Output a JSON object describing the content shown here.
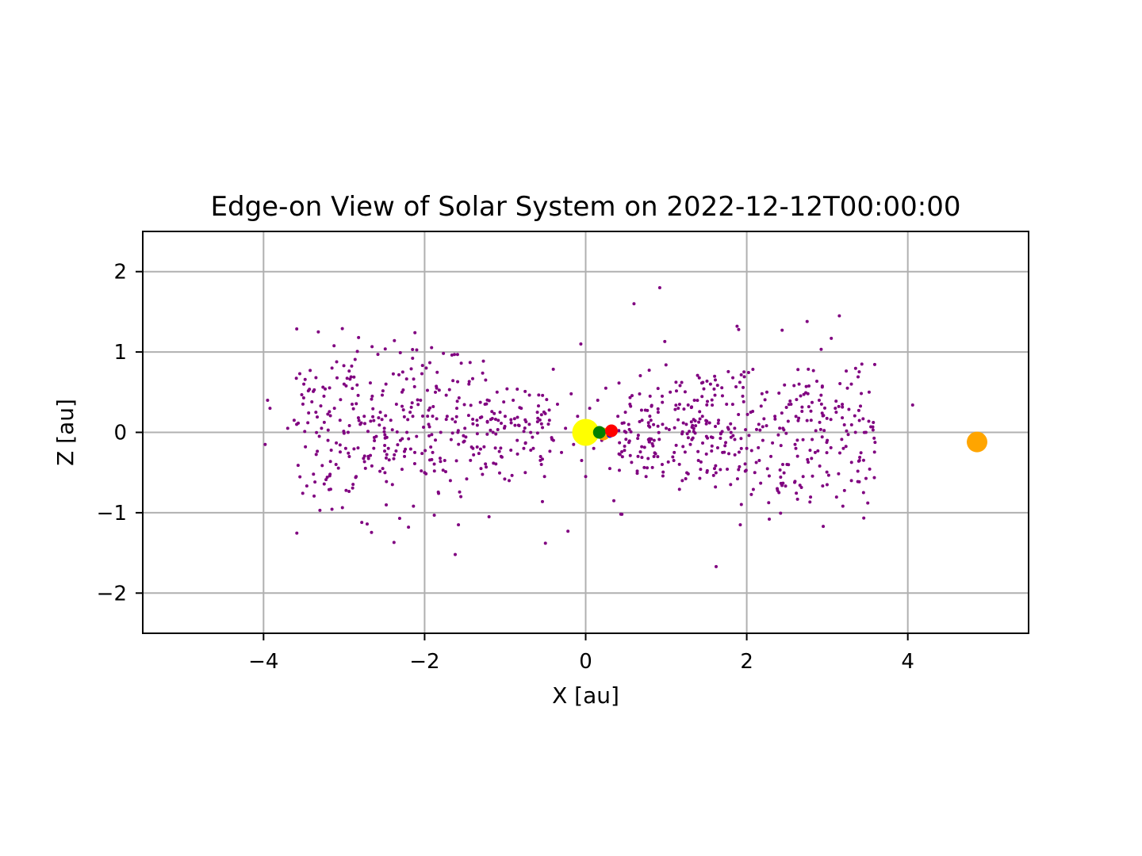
{
  "chart_data": {
    "type": "scatter",
    "title": "Edge-on View of Solar System on 2022-12-12T00:00:00",
    "xlabel": "X [au]",
    "ylabel": "Z [au]",
    "xlim": [
      -5.5,
      5.5
    ],
    "ylim": [
      -2.5,
      2.5
    ],
    "grid": true,
    "x_ticks": [
      -4,
      -2,
      0,
      2,
      4
    ],
    "y_ticks": [
      -2,
      -1,
      0,
      1,
      2
    ],
    "x_tick_labels": [
      "−4",
      "−2",
      "0",
      "2",
      "4"
    ],
    "y_tick_labels": [
      "−2",
      "−1",
      "0",
      "1",
      "2"
    ],
    "colors": {
      "asteroids": "#800080",
      "sun": "#ffff00",
      "venus": "#ffa500",
      "mercury": "#0000ff",
      "earth": "#008000",
      "mars": "#ff0000",
      "jupiter": "#ffa500",
      "grid": "#b0b0b0"
    },
    "bodies": [
      {
        "x": 0.0,
        "z": 0.0,
        "color": "#ffff00",
        "size": "large"
      },
      {
        "x": 0.22,
        "z": -0.02,
        "color": "#ffa500",
        "size": "small"
      },
      {
        "x": 0.3,
        "z": -0.03,
        "color": "#0000ff",
        "size": "tiny"
      },
      {
        "x": 0.17,
        "z": 0.0,
        "color": "#008000",
        "size": "small"
      },
      {
        "x": 0.32,
        "z": 0.02,
        "color": "#ff0000",
        "size": "small"
      },
      {
        "x": 4.86,
        "z": -0.12,
        "color": "#ffa500",
        "size": "medium"
      }
    ],
    "asteroids": [
      [
        -3.98,
        -0.15
      ],
      [
        -3.95,
        0.4
      ],
      [
        -3.92,
        0.3
      ],
      [
        -3.7,
        0.05
      ],
      [
        -3.62,
        0.15
      ],
      [
        -3.55,
        0.73
      ],
      [
        -3.5,
        0.6
      ],
      [
        -3.48,
        -0.18
      ],
      [
        -3.45,
        0.12
      ],
      [
        -3.4,
        0.38
      ],
      [
        -3.38,
        -0.52
      ],
      [
        -3.35,
        0.25
      ],
      [
        -3.32,
        1.25
      ],
      [
        -3.3,
        -0.97
      ],
      [
        -3.28,
        0.05
      ],
      [
        -3.25,
        0.45
      ],
      [
        -3.2,
        -0.1
      ],
      [
        -3.15,
        0.8
      ],
      [
        -3.12,
        0.3
      ],
      [
        -3.1,
        -0.4
      ],
      [
        -3.05,
        0.15
      ],
      [
        -3.0,
        0.6
      ],
      [
        -2.98,
        -0.2
      ],
      [
        -2.95,
        0.0
      ],
      [
        -2.9,
        0.35
      ],
      [
        -2.85,
        -0.55
      ],
      [
        -2.82,
        1.18
      ],
      [
        -2.8,
        0.1
      ],
      [
        -2.78,
        -1.12
      ],
      [
        -2.75,
        0.2
      ],
      [
        -2.7,
        -0.3
      ],
      [
        -2.65,
        0.45
      ],
      [
        -2.6,
        -0.05
      ],
      [
        -2.58,
        0.97
      ],
      [
        -2.55,
        0.25
      ],
      [
        -2.52,
        -0.45
      ],
      [
        -2.5,
        0.05
      ],
      [
        -2.48,
        0.6
      ],
      [
        -2.45,
        -0.2
      ],
      [
        -2.42,
        0.15
      ],
      [
        -2.4,
        -0.65
      ],
      [
        -2.38,
        -1.37
      ],
      [
        -2.35,
        0.35
      ],
      [
        -2.3,
        -0.1
      ],
      [
        -2.28,
        0.5
      ],
      [
        -2.25,
        -0.3
      ],
      [
        -2.22,
        0.0
      ],
      [
        -2.2,
        -1.18
      ],
      [
        -2.18,
        0.25
      ],
      [
        -2.15,
        1.03
      ],
      [
        -2.12,
        1.24
      ],
      [
        -2.1,
        -0.05
      ],
      [
        -2.05,
        0.4
      ],
      [
        -2.0,
        -0.5
      ],
      [
        -1.98,
        0.8
      ],
      [
        -1.95,
        0.1
      ],
      [
        -1.9,
        -0.25
      ],
      [
        -1.88,
        -1.03
      ],
      [
        -1.85,
        0.55
      ],
      [
        -1.8,
        0.0
      ],
      [
        -1.75,
        -0.35
      ],
      [
        -1.72,
        0.2
      ],
      [
        -1.68,
        -0.6
      ],
      [
        -1.62,
        -1.52
      ],
      [
        -1.6,
        0.3
      ],
      [
        -1.58,
        -1.15
      ],
      [
        -1.55,
        -0.8
      ],
      [
        -1.5,
        0.05
      ],
      [
        -1.45,
        0.6
      ],
      [
        -1.4,
        -0.2
      ],
      [
        -1.35,
        0.15
      ],
      [
        -1.3,
        -0.45
      ],
      [
        -1.25,
        0.35
      ],
      [
        -1.2,
        -1.05
      ],
      [
        -1.15,
        0.0
      ],
      [
        -1.1,
        0.5
      ],
      [
        -1.05,
        -0.3
      ],
      [
        -1.0,
        0.2
      ],
      [
        -0.95,
        -0.6
      ],
      [
        -0.9,
        0.4
      ],
      [
        -0.85,
        -0.1
      ],
      [
        -0.8,
        0.3
      ],
      [
        -0.75,
        -0.5
      ],
      [
        -0.7,
        0.1
      ],
      [
        -0.65,
        -0.2
      ],
      [
        -0.6,
        0.25
      ],
      [
        -0.55,
        -0.4
      ],
      [
        -0.5,
        -1.38
      ],
      [
        -0.45,
        0.15
      ],
      [
        -0.4,
        -0.1
      ],
      [
        -0.35,
        0.35
      ],
      [
        -0.3,
        -0.25
      ],
      [
        -0.25,
        0.05
      ],
      [
        -0.22,
        -1.23
      ],
      [
        -0.18,
        0.48
      ],
      [
        -0.15,
        -0.15
      ],
      [
        -0.1,
        0.2
      ],
      [
        -0.06,
        1.1
      ],
      [
        -0.05,
        -0.35
      ],
      [
        0.0,
        -0.55
      ],
      [
        0.05,
        0.3
      ],
      [
        0.1,
        -0.2
      ],
      [
        0.15,
        0.4
      ],
      [
        0.2,
        -0.1
      ],
      [
        0.25,
        0.55
      ],
      [
        0.3,
        -0.45
      ],
      [
        0.35,
        -0.85
      ],
      [
        0.4,
        0.2
      ],
      [
        0.45,
        -1.02
      ],
      [
        0.5,
        0.0
      ],
      [
        0.55,
        0.35
      ],
      [
        0.6,
        1.6
      ],
      [
        0.65,
        -0.3
      ],
      [
        0.7,
        0.15
      ],
      [
        0.75,
        -0.55
      ],
      [
        0.8,
        0.45
      ],
      [
        0.85,
        -0.1
      ],
      [
        0.9,
        0.25
      ],
      [
        0.92,
        1.8
      ],
      [
        0.95,
        -0.4
      ],
      [
        1.0,
        0.05
      ],
      [
        1.05,
        0.5
      ],
      [
        1.1,
        -0.25
      ],
      [
        1.15,
        0.3
      ],
      [
        1.2,
        -0.6
      ],
      [
        1.25,
        0.1
      ],
      [
        1.3,
        -0.15
      ],
      [
        1.35,
        0.4
      ],
      [
        1.4,
        -0.35
      ],
      [
        1.45,
        0.2
      ],
      [
        1.5,
        -0.05
      ],
      [
        1.55,
        0.6
      ],
      [
        1.6,
        -0.45
      ],
      [
        1.62,
        -1.67
      ],
      [
        1.65,
        0.15
      ],
      [
        1.7,
        -0.25
      ],
      [
        1.75,
        0.35
      ],
      [
        1.8,
        -0.65
      ],
      [
        1.85,
        0.05
      ],
      [
        1.88,
        1.32
      ],
      [
        1.9,
        1.28
      ],
      [
        1.92,
        -1.15
      ],
      [
        1.95,
        0.45
      ],
      [
        2.0,
        -0.2
      ],
      [
        2.05,
        0.25
      ],
      [
        2.1,
        -0.5
      ],
      [
        2.15,
        0.1
      ],
      [
        2.2,
        -0.1
      ],
      [
        2.25,
        0.5
      ],
      [
        2.28,
        -1.08
      ],
      [
        2.3,
        -0.3
      ],
      [
        2.35,
        0.2
      ],
      [
        2.4,
        -0.75
      ],
      [
        2.45,
        0.05
      ],
      [
        2.5,
        -0.4
      ],
      [
        2.55,
        0.35
      ],
      [
        2.6,
        -0.15
      ],
      [
        2.65,
        0.6
      ],
      [
        2.7,
        -0.55
      ],
      [
        2.75,
        1.38
      ],
      [
        2.8,
        0.15
      ],
      [
        2.85,
        -0.25
      ],
      [
        2.9,
        0.4
      ],
      [
        2.95,
        -1.17
      ],
      [
        3.0,
        -0.1
      ],
      [
        3.05,
        1.17
      ],
      [
        3.1,
        0.3
      ],
      [
        3.15,
        1.45
      ],
      [
        3.2,
        -0.2
      ],
      [
        3.25,
        0.55
      ],
      [
        3.3,
        -0.6
      ],
      [
        3.35,
        0.0
      ],
      [
        3.4,
        -0.35
      ],
      [
        3.45,
        -0.75
      ],
      [
        3.48,
        0.0
      ],
      [
        3.52,
        0.5
      ],
      [
        4.06,
        0.34
      ]
    ]
  }
}
